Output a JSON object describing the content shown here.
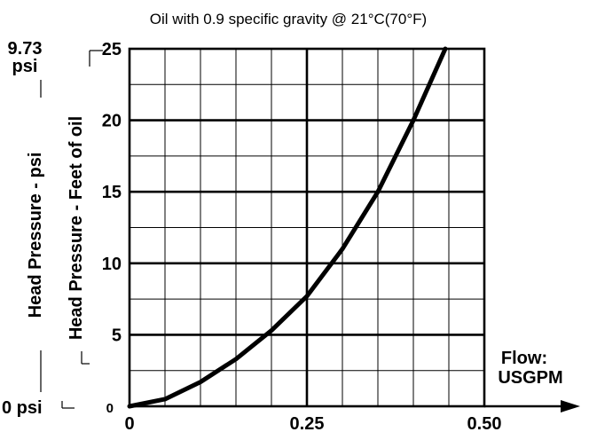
{
  "chart_data": {
    "type": "line",
    "title": "Oil with 0.9 specific gravity @ 21°C(70°F)",
    "xlabel": "Flow: USGPM",
    "xlabel_lines": [
      "Flow:",
      "USGPM"
    ],
    "ylabel": "Head Pressure - Feet of oil",
    "ylabel_secondary": "Head Pressure - psi",
    "secondary_axis": {
      "top_label_lines": [
        "9.73",
        "psi"
      ],
      "bottom_label": "0 psi",
      "range": [
        0,
        9.73
      ]
    },
    "xlim": [
      0,
      0.5
    ],
    "ylim": [
      0,
      25
    ],
    "x_ticks": [
      {
        "value": 0,
        "label": "0"
      },
      {
        "value": 0.25,
        "label": "0.25"
      },
      {
        "value": 0.5,
        "label": "0.50"
      }
    ],
    "y_ticks": [
      {
        "value": 0,
        "label": "0"
      },
      {
        "value": 5,
        "label": "5"
      },
      {
        "value": 10,
        "label": "10"
      },
      {
        "value": 15,
        "label": "15"
      },
      {
        "value": 20,
        "label": "20"
      },
      {
        "value": 25,
        "label": "25"
      }
    ],
    "grid": true,
    "series": [
      {
        "x": [
          0,
          0.05,
          0.1,
          0.15,
          0.2,
          0.25,
          0.3,
          0.35,
          0.4,
          0.445
        ],
        "y": [
          0,
          0.5,
          1.7,
          3.3,
          5.3,
          7.7,
          11.0,
          15.0,
          20.0,
          25.0
        ]
      }
    ]
  }
}
